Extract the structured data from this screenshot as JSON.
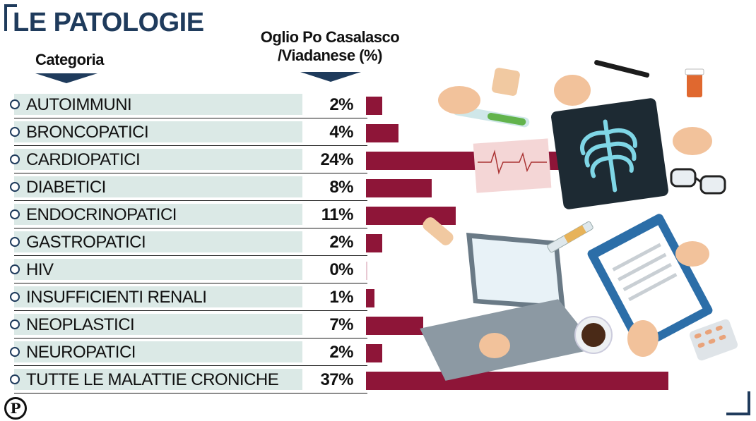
{
  "title": "LE PATOLOGIE",
  "headers": {
    "category": "Categoria",
    "value_line1": "Oglio Po Casalasco",
    "value_line2": "/Viadanese (%)"
  },
  "logo_letter": "P",
  "colors": {
    "bar": "#8e1538",
    "band": "#dbe9e6",
    "navy": "#1f3b5c"
  },
  "chart_data": {
    "type": "bar",
    "orientation": "horizontal",
    "title": "LE PATOLOGIE",
    "categories": [
      "AUTOIMMUNI",
      "BRONCOPATICI",
      "CARDIOPATICI",
      "DIABETICI",
      "ENDOCRINOPATICI",
      "GASTROPATICI",
      "HIV",
      "INSUFFICIENTI RENALI",
      "NEOPLASTICI",
      "NEUROPATICI",
      "TUTTE LE MALATTIE CRONICHE"
    ],
    "values": [
      2,
      4,
      24,
      8,
      11,
      2,
      0,
      1,
      7,
      2,
      37
    ],
    "value_labels": [
      "2%",
      "4%",
      "24%",
      "8%",
      "11%",
      "2%",
      "0%",
      "1%",
      "7%",
      "2%",
      "37%"
    ],
    "series": [
      {
        "name": "Oglio Po Casalasco /Viadanese (%)",
        "values": [
          2,
          4,
          24,
          8,
          11,
          2,
          0,
          1,
          7,
          2,
          37
        ]
      }
    ],
    "xlim": [
      0,
      37
    ],
    "grid": false
  }
}
